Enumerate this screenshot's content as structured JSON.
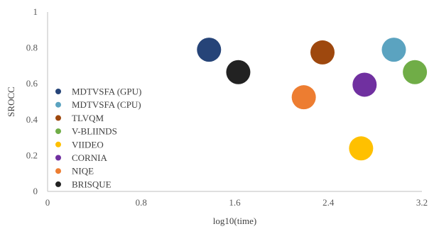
{
  "chart_data": {
    "type": "scatter",
    "title": "",
    "xlabel": "log10(time)",
    "ylabel": "SROCC",
    "xlim": [
      0,
      3.2
    ],
    "ylim": [
      0,
      1
    ],
    "xticks": [
      "0",
      "0.8",
      "1.6",
      "2.4",
      "3.2"
    ],
    "yticks": [
      "0",
      "0.2",
      "0.4",
      "0.6",
      "0.8",
      "1"
    ],
    "grid": false,
    "legend_position": "left",
    "series": [
      {
        "name": "MDTVSFA (GPU)",
        "color": "#264478",
        "x": 1.38,
        "y": 0.79
      },
      {
        "name": "MDTVSFA (CPU)",
        "color": "#5BA3C0",
        "x": 2.96,
        "y": 0.79
      },
      {
        "name": "TLVQM",
        "color": "#9E480E",
        "x": 2.35,
        "y": 0.775
      },
      {
        "name": "V-BLIINDS",
        "color": "#70AD47",
        "x": 3.14,
        "y": 0.665
      },
      {
        "name": "VIIDEO",
        "color": "#FFC000",
        "x": 2.68,
        "y": 0.24
      },
      {
        "name": "CORNIA",
        "color": "#7030A0",
        "x": 2.71,
        "y": 0.595
      },
      {
        "name": "NIQE",
        "color": "#ED7D31",
        "x": 2.19,
        "y": 0.525
      },
      {
        "name": "BRISQUE",
        "color": "#222222",
        "x": 1.63,
        "y": 0.665
      }
    ]
  }
}
